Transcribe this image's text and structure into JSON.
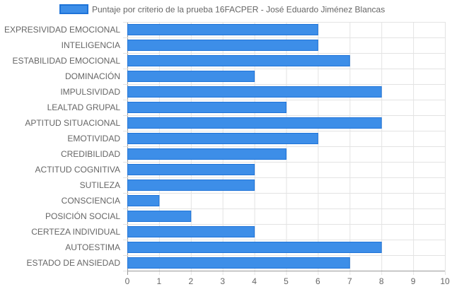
{
  "chart_data": {
    "type": "bar",
    "orientation": "horizontal",
    "categories": [
      "EXPRESIVIDAD EMOCIONAL",
      "INTELIGENCIA",
      "ESTABILIDAD EMOCIONAL",
      "DOMINACIÓN",
      "IMPULSIVIDAD",
      "LEALTAD GRUPAL",
      "APTITUD SITUACIONAL",
      "EMOTIVIDAD",
      "CREDIBILIDAD",
      "ACTITUD COGNITIVA",
      "SUTILEZA",
      "CONSCIENCIA",
      "POSICIÓN SOCIAL",
      "CERTEZA INDIVIDUAL",
      "AUTOESTIMA",
      "ESTADO DE ANSIEDAD"
    ],
    "series": [
      {
        "name": "Puntaje por criterio de la prueba 16FACPER - José Eduardo Jiménez Blancas",
        "values": [
          6,
          6,
          7,
          4,
          8,
          5,
          8,
          6,
          5,
          4,
          4,
          1,
          2,
          4,
          8,
          7
        ],
        "fill_color": "#3d8ee8",
        "border_color": "#1e73d8"
      }
    ],
    "xticks": [
      "0",
      "1",
      "2",
      "3",
      "4",
      "5",
      "6",
      "7",
      "8",
      "9",
      "10"
    ],
    "xlim": [
      0,
      10
    ],
    "grid": true,
    "legend_position": "top",
    "grid_color": "#e3e3e3",
    "axis_color": "#999999"
  }
}
